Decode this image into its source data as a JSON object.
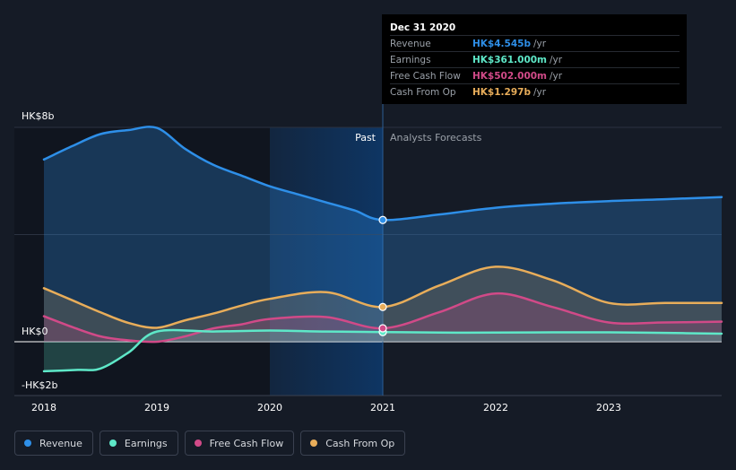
{
  "chart_data": {
    "type": "area",
    "y_tick_labels": [
      "HK$8b",
      "HK$0",
      "-HK$2b"
    ],
    "y_ticks": [
      8,
      0,
      -2
    ],
    "ylim": [
      -2,
      8
    ],
    "xlim": [
      2018,
      2024
    ],
    "x_tick_labels": [
      "2018",
      "2019",
      "2020",
      "2021",
      "2022",
      "2023"
    ],
    "x_ticks": [
      2018,
      2019,
      2020,
      2021,
      2022,
      2023
    ],
    "region_labels": {
      "past": "Past",
      "forecast": "Analysts Forecasts"
    },
    "past_boundary": 2021,
    "series": [
      {
        "name": "Revenue",
        "color": "#2e8fe8",
        "points": [
          [
            2018,
            6.8
          ],
          [
            2018.25,
            7.3
          ],
          [
            2018.5,
            7.75
          ],
          [
            2018.75,
            7.9
          ],
          [
            2019,
            7.98
          ],
          [
            2019.25,
            7.2
          ],
          [
            2019.5,
            6.6
          ],
          [
            2019.75,
            6.2
          ],
          [
            2020,
            5.8
          ],
          [
            2020.25,
            5.5
          ],
          [
            2020.5,
            5.2
          ],
          [
            2020.75,
            4.9
          ],
          [
            2021,
            4.545
          ],
          [
            2021.5,
            4.75
          ],
          [
            2022,
            5.0
          ],
          [
            2022.5,
            5.15
          ],
          [
            2023,
            5.25
          ],
          [
            2023.5,
            5.32
          ],
          [
            2024,
            5.4
          ]
        ]
      },
      {
        "name": "Earnings",
        "color": "#5ee8c8",
        "points": [
          [
            2018,
            -1.1
          ],
          [
            2018.3,
            -1.05
          ],
          [
            2018.5,
            -1.0
          ],
          [
            2018.75,
            -0.4
          ],
          [
            2019,
            0.38
          ],
          [
            2019.5,
            0.38
          ],
          [
            2020,
            0.42
          ],
          [
            2020.5,
            0.38
          ],
          [
            2021,
            0.361
          ],
          [
            2021.5,
            0.34
          ],
          [
            2022,
            0.34
          ],
          [
            2022.5,
            0.35
          ],
          [
            2023,
            0.35
          ],
          [
            2023.5,
            0.33
          ],
          [
            2024,
            0.3
          ]
        ]
      },
      {
        "name": "Free Cash Flow",
        "color": "#d14a88",
        "points": [
          [
            2018,
            0.95
          ],
          [
            2018.25,
            0.55
          ],
          [
            2018.5,
            0.2
          ],
          [
            2018.75,
            0.05
          ],
          [
            2019,
            0.0
          ],
          [
            2019.25,
            0.2
          ],
          [
            2019.5,
            0.5
          ],
          [
            2019.75,
            0.65
          ],
          [
            2020,
            0.85
          ],
          [
            2020.5,
            0.92
          ],
          [
            2021,
            0.502
          ],
          [
            2021.5,
            1.1
          ],
          [
            2022,
            1.8
          ],
          [
            2022.5,
            1.3
          ],
          [
            2023,
            0.72
          ],
          [
            2023.5,
            0.72
          ],
          [
            2024,
            0.75
          ]
        ]
      },
      {
        "name": "Cash From Op",
        "color": "#e8ad5a",
        "points": [
          [
            2018,
            2.0
          ],
          [
            2018.25,
            1.55
          ],
          [
            2018.5,
            1.1
          ],
          [
            2018.75,
            0.7
          ],
          [
            2019,
            0.52
          ],
          [
            2019.25,
            0.8
          ],
          [
            2019.5,
            1.05
          ],
          [
            2019.75,
            1.35
          ],
          [
            2020,
            1.6
          ],
          [
            2020.5,
            1.85
          ],
          [
            2021,
            1.297
          ],
          [
            2021.5,
            2.1
          ],
          [
            2022,
            2.8
          ],
          [
            2022.5,
            2.3
          ],
          [
            2023,
            1.45
          ],
          [
            2023.5,
            1.45
          ],
          [
            2024,
            1.45
          ]
        ]
      }
    ]
  },
  "tooltip": {
    "title": "Dec 31 2020",
    "rows": [
      {
        "label": "Revenue",
        "value": "HK$4.545b",
        "unit": "/yr",
        "color": "#2e8fe8"
      },
      {
        "label": "Earnings",
        "value": "HK$361.000m",
        "unit": "/yr",
        "color": "#5ee8c8"
      },
      {
        "label": "Free Cash Flow",
        "value": "HK$502.000m",
        "unit": "/yr",
        "color": "#d14a88"
      },
      {
        "label": "Cash From Op",
        "value": "HK$1.297b",
        "unit": "/yr",
        "color": "#e8ad5a"
      }
    ]
  },
  "legend": [
    {
      "label": "Revenue",
      "color": "#2e8fe8"
    },
    {
      "label": "Earnings",
      "color": "#5ee8c8"
    },
    {
      "label": "Free Cash Flow",
      "color": "#d14a88"
    },
    {
      "label": "Cash From Op",
      "color": "#e8ad5a"
    }
  ]
}
